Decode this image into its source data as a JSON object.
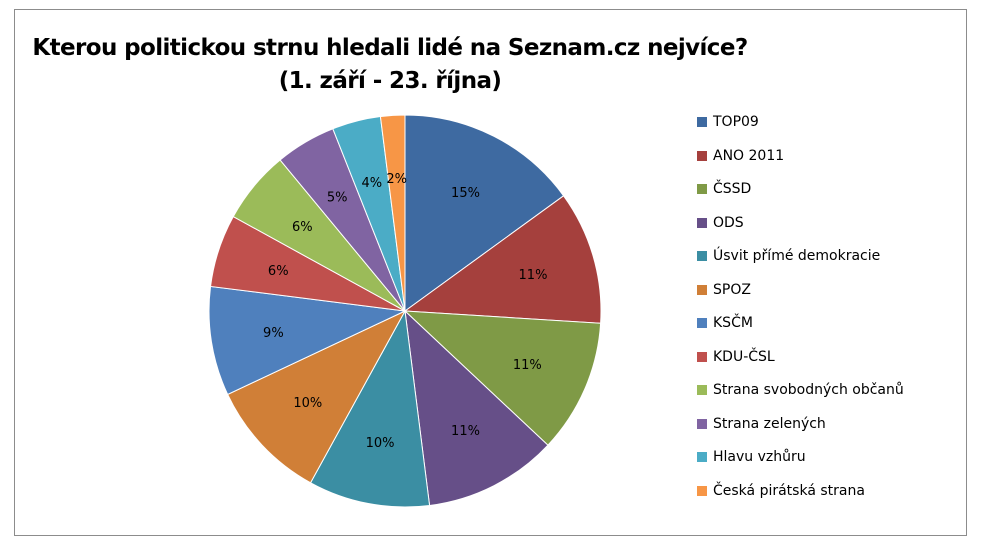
{
  "chart_data": {
    "type": "pie",
    "title_line1": "Kterou politickou strnu hledali lidé na Seznam.cz nejvíce?",
    "title_line2": "(1. září - 23. října)",
    "legend_position": "right",
    "categories": [
      "TOP09",
      "ANO 2011",
      "ČSSD",
      "ODS",
      "Úsvit přímé demokracie",
      "SPOZ",
      "KSČM",
      "KDU-ČSL",
      "Strana svobodných občanů",
      "Strana zelených",
      "Hlavu vzhůru",
      "Česká pirátská strana"
    ],
    "values": [
      15,
      11,
      11,
      11,
      10,
      10,
      9,
      6,
      6,
      5,
      4,
      2
    ],
    "labels": [
      "15%",
      "11%",
      "11%",
      "11%",
      "10%",
      "10%",
      "9%",
      "6%",
      "6%",
      "5%",
      "4%",
      "2%"
    ],
    "colors": [
      "#3e6aa1",
      "#a5403d",
      "#7f9a46",
      "#664f88",
      "#3b8ea3",
      "#d07f37",
      "#4f80bd",
      "#c0504d",
      "#9bbb59",
      "#8064a2",
      "#4bacc6",
      "#f79646"
    ]
  }
}
